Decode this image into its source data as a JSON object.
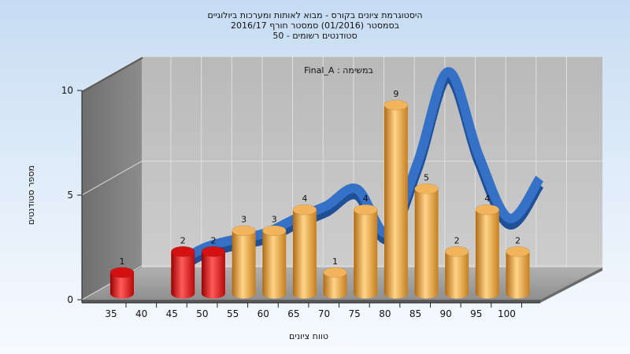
{
  "chart_data": {
    "type": "bar",
    "title_lines": [
      "היסטוגרמת ציונים בקורס - מבוא לאותות ומערכות ביולוגיים",
      "בסמסטר  (01/2016)  סמסטר חורף 2016/17",
      "סטודנטים רשומים - 50"
    ],
    "annotation": "Final_A : במשימה",
    "xlabel": "טווח ציונים",
    "ylabel": "מספר סטודנטים",
    "x_ticks": [
      "35",
      "40",
      "45",
      "50",
      "55",
      "60",
      "65",
      "70",
      "75",
      "80",
      "85",
      "90",
      "95",
      "100"
    ],
    "y_ticks": [
      "0",
      "5",
      "10"
    ],
    "ylim": [
      0,
      10
    ],
    "bars": [
      {
        "x": 35,
        "value": 1,
        "label": "1",
        "color": "red"
      },
      {
        "x": 45,
        "value": 2,
        "label": "2",
        "color": "red"
      },
      {
        "x": 50,
        "value": 2,
        "label": "2",
        "color": "red"
      },
      {
        "x": 55,
        "value": 3,
        "label": "3",
        "color": "orange"
      },
      {
        "x": 60,
        "value": 3,
        "label": "3",
        "color": "orange"
      },
      {
        "x": 65,
        "value": 4,
        "label": "4",
        "color": "orange"
      },
      {
        "x": 70,
        "value": 1,
        "label": "1",
        "color": "orange"
      },
      {
        "x": 75,
        "value": 4,
        "label": "4",
        "color": "orange"
      },
      {
        "x": 80,
        "value": 9,
        "label": "9",
        "color": "orange"
      },
      {
        "x": 85,
        "value": 5,
        "label": "5",
        "color": "orange"
      },
      {
        "x": 90,
        "value": 2,
        "label": "2",
        "color": "orange"
      },
      {
        "x": 95,
        "value": 4,
        "label": "4",
        "color": "orange"
      },
      {
        "x": 100,
        "value": 2,
        "label": "2",
        "color": "orange"
      }
    ],
    "curve": {
      "x": [
        40,
        45,
        50,
        55,
        60,
        65,
        70,
        75,
        80,
        85,
        90,
        95,
        100
      ],
      "y": [
        0.8,
        1.6,
        2.0,
        2.3,
        3.0,
        3.6,
        4.4,
        2.3,
        5.7,
        10.0,
        6.0,
        3.0,
        4.9
      ]
    },
    "colors": {
      "red": "#e41a1a",
      "orange": "#eeaa44",
      "curve": "#3572c7",
      "back_wall": "#c2c2c2",
      "side_wall": "#7f7f7f",
      "floor": "#9d9d9d"
    },
    "grid": true,
    "style": "3d"
  }
}
